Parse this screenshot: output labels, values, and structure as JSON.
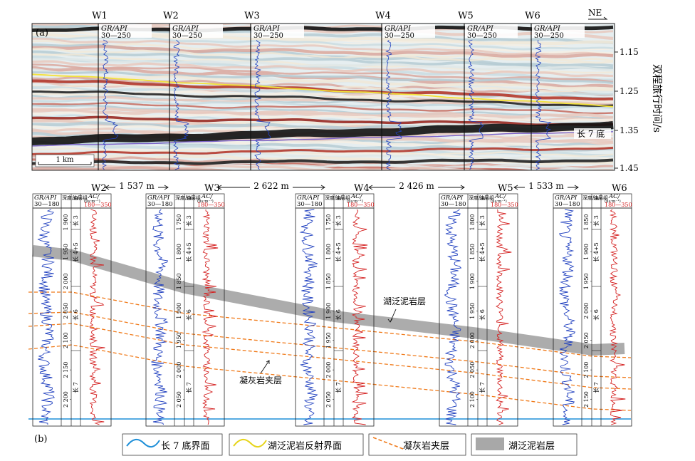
{
  "panel_a": {
    "label": "(a)",
    "direction": "NE",
    "y_axis_title": "双程旅行时间/s",
    "y_ticks": [
      "1.15",
      "1.25",
      "1.35",
      "1.45"
    ],
    "scale_bar": "1 km",
    "base_label": "长 7 底",
    "wells": [
      {
        "name": "W1",
        "log_title": "GR/API",
        "log_range": "30—250"
      },
      {
        "name": "W2",
        "log_title": "GR/API",
        "log_range": "30—250"
      },
      {
        "name": "W3",
        "log_title": "GR/API",
        "log_range": "30—250"
      },
      {
        "name": "W4",
        "log_title": "GR/API",
        "log_range": "30—250"
      },
      {
        "name": "W5",
        "log_title": "GR/API",
        "log_range": "30—250"
      },
      {
        "name": "W6",
        "log_title": "GR/API",
        "log_range": "30—250"
      }
    ]
  },
  "panel_b": {
    "label": "(b)",
    "distances": [
      "1 537 m",
      "2 622 m",
      "2 426 m",
      "1 533 m"
    ],
    "col_gr": "GR/API",
    "col_gr_range": "30—180",
    "col_depth": "深度/m",
    "col_oil": "油层组",
    "col_ac": "AC/",
    "col_ac_unit": "(μs·m⁻¹)",
    "col_ac_range": "180—350",
    "annotation_mudstone": "湖泛泥岩层",
    "annotation_tuff": "凝灰岩夹层",
    "wells": [
      {
        "name": "W2",
        "depths": [
          "1 900",
          "1 950",
          "2 000",
          "2 050",
          "2 100",
          "2 150",
          "2 200"
        ],
        "zones": [
          "长 3",
          "长 4+5",
          "长 6",
          "长 7"
        ]
      },
      {
        "name": "W3",
        "depths": [
          "1 750",
          "1 800",
          "1 850",
          "1 900",
          "1 950",
          "2 000",
          "2 050"
        ],
        "zones": [
          "长 3",
          "长 4+5",
          "长 6",
          "长 7"
        ]
      },
      {
        "name": "W4",
        "depths": [
          "1 750",
          "1 800",
          "1 850",
          "1 900",
          "1 950",
          "2 000",
          "2 050"
        ],
        "zones": [
          "长 3",
          "长 4+5",
          "长 6",
          "长 7"
        ]
      },
      {
        "name": "W5",
        "depths": [
          "1 800",
          "1 850",
          "1 900",
          "1 950",
          "2 000",
          "2 050",
          "2 100"
        ],
        "zones": [
          "长 3",
          "长 4+5",
          "长 6",
          "长 7"
        ]
      },
      {
        "name": "W6",
        "depths": [
          "1 850",
          "1 900",
          "1 950",
          "2 000",
          "2 050",
          "2 100",
          "2 150"
        ],
        "zones": [
          "长 3",
          "长 4+5",
          "长 6",
          "长 7"
        ]
      }
    ]
  },
  "legend": {
    "base_surface": "长 7 底界面",
    "mudstone_reflector": "湖泛泥岩反射界面",
    "tuff_layer": "凝灰岩夹层",
    "mudstone_layer": "湖泛泥岩层"
  },
  "colors": {
    "gr_curve": "#1f3fbf",
    "ac_curve": "#d42020",
    "base_line": "#1e8fd8",
    "reflector": "#f2e23a",
    "tuff": "#f07a1a",
    "mudstone": "#a8a8a8"
  }
}
